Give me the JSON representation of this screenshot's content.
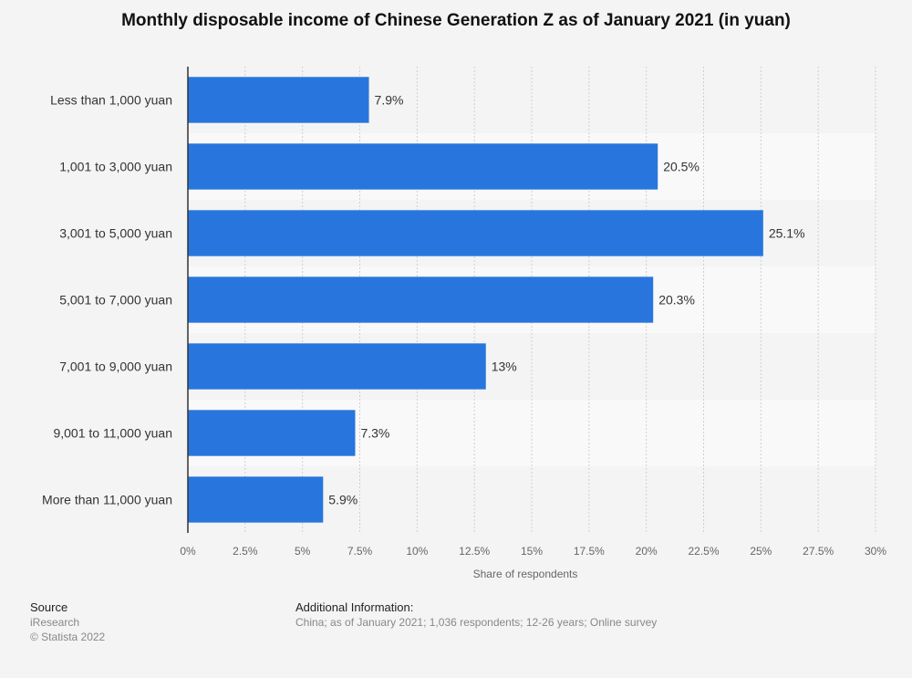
{
  "chart_data": {
    "type": "bar",
    "orientation": "horizontal",
    "title": "Monthly disposable income of Chinese Generation Z as of January 2021 (in yuan)",
    "xlabel": "Share of respondents",
    "ylabel": "",
    "categories": [
      "Less than 1,000 yuan",
      "1,001 to 3,000 yuan",
      "3,001 to 5,000 yuan",
      "5,001 to 7,000 yuan",
      "7,001 to 9,000 yuan",
      "9,001 to 11,000 yuan",
      "More than 11,000 yuan"
    ],
    "values": [
      7.9,
      20.5,
      25.1,
      20.3,
      13,
      7.3,
      5.9
    ],
    "value_labels": [
      "7.9%",
      "20.5%",
      "25.1%",
      "20.3%",
      "13%",
      "7.3%",
      "5.9%"
    ],
    "xlim": [
      0,
      30
    ],
    "ticks": [
      0,
      2.5,
      5,
      7.5,
      10,
      12.5,
      15,
      17.5,
      20,
      22.5,
      25,
      27.5,
      30
    ],
    "tick_labels": [
      "0%",
      "2.5%",
      "5%",
      "7.5%",
      "10%",
      "12.5%",
      "15%",
      "17.5%",
      "20%",
      "22.5%",
      "25%",
      "27.5%",
      "30%"
    ],
    "grid": true,
    "bar_color": "#2876dd"
  },
  "footer": {
    "source_heading": "Source",
    "source_name": "iResearch",
    "copyright": "© Statista 2022",
    "info_heading": "Additional Information:",
    "info_text": "China; as of January 2021; 1,036 respondents; 12-26 years; Online survey"
  }
}
